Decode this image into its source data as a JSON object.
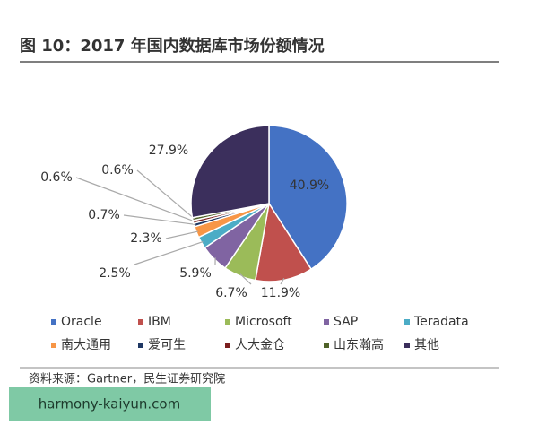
{
  "chart_data": {
    "type": "pie",
    "title": "图 10：2017 年国内数据库市场份额情况",
    "categories": [
      "Oracle",
      "IBM",
      "Microsoft",
      "SAP",
      "Teradata",
      "南大通用",
      "爱可生",
      "人大金仓",
      "山东瀚高",
      "其他"
    ],
    "values": [
      40.9,
      11.9,
      6.7,
      5.9,
      2.5,
      2.3,
      0.7,
      0.6,
      0.6,
      27.9
    ],
    "value_labels": [
      "40.9%",
      "11.9%",
      "6.7%",
      "5.9%",
      "2.5%",
      "2.3%",
      "0.7%",
      "0.6%",
      "0.6%",
      "27.9%"
    ],
    "colors": [
      "#4472c4",
      "#c0504d",
      "#9bbb59",
      "#8064a2",
      "#4bacc6",
      "#f79646",
      "#1f3864",
      "#7b1e1e",
      "#4f6228",
      "#3b2f5c"
    ],
    "source": "资料来源：Gartner，民生证券研究院",
    "watermark": "harmony-kaiyun.com"
  }
}
